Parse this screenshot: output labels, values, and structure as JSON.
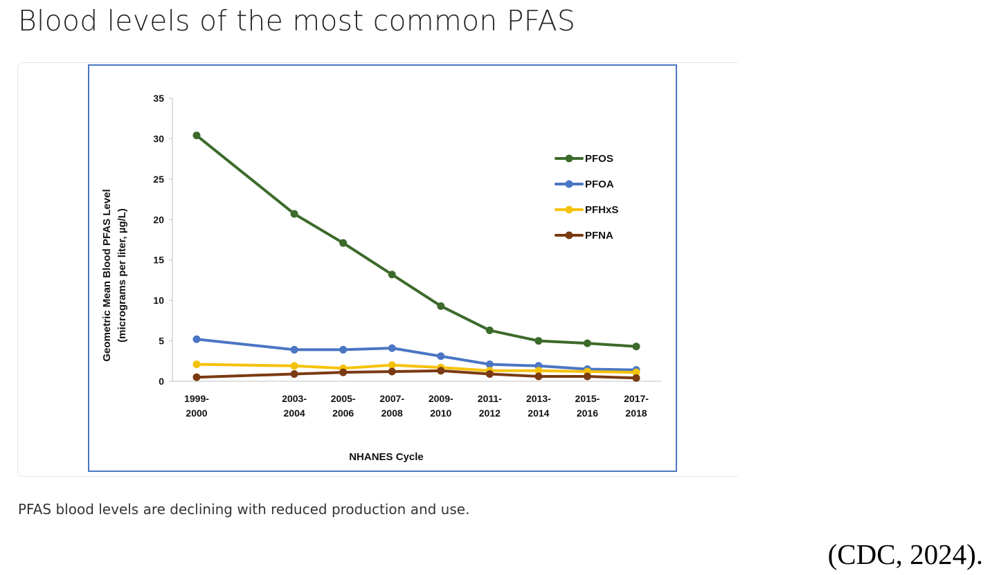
{
  "page": {
    "title": "Blood levels of the most common PFAS",
    "caption": "PFAS blood levels are declining with reduced production and use.",
    "citation": "(CDC, 2024)."
  },
  "colors": {
    "frame_border": "#4a76c3",
    "PFOS": "#3c6a2a",
    "PFOA": "#4a76c3",
    "PFHxS": "#f5c20a",
    "PFNA": "#7a3a12"
  },
  "chart_data": {
    "type": "line",
    "title": "",
    "xlabel": "NHANES Cycle",
    "ylabel_line1": "Geometric Mean Blood PFAS Level",
    "ylabel_line2": "(micrograms per liter, µg/L)",
    "ylim": [
      0,
      35
    ],
    "yticks": [
      0,
      5,
      10,
      15,
      20,
      25,
      30,
      35
    ],
    "categories": [
      [
        "1999-",
        "2000"
      ],
      [
        "2003-",
        "2004"
      ],
      [
        "2005-",
        "2006"
      ],
      [
        "2007-",
        "2008"
      ],
      [
        "2009-",
        "2010"
      ],
      [
        "2011-",
        "2012"
      ],
      [
        "2013-",
        "2014"
      ],
      [
        "2015-",
        "2016"
      ],
      [
        "2017-",
        "2018"
      ]
    ],
    "category_start_years": [
      1999,
      2003,
      2005,
      2007,
      2009,
      2011,
      2013,
      2015,
      2017
    ],
    "legend_position": "upper-right",
    "grid": false,
    "series": [
      {
        "name": "PFOS",
        "color": "#3c6a2a",
        "values": [
          30.4,
          20.7,
          17.1,
          13.2,
          9.3,
          6.3,
          5.0,
          4.7,
          4.3
        ]
      },
      {
        "name": "PFOA",
        "color": "#4a76c3",
        "values": [
          5.2,
          3.9,
          3.9,
          4.1,
          3.1,
          2.1,
          1.9,
          1.5,
          1.4
        ]
      },
      {
        "name": "PFHxS",
        "color": "#f5c20a",
        "values": [
          2.1,
          1.9,
          1.6,
          2.0,
          1.7,
          1.3,
          1.3,
          1.2,
          1.1
        ]
      },
      {
        "name": "PFNA",
        "color": "#7a3a12",
        "values": [
          0.5,
          0.9,
          1.1,
          1.2,
          1.3,
          0.9,
          0.6,
          0.6,
          0.4
        ]
      }
    ]
  }
}
